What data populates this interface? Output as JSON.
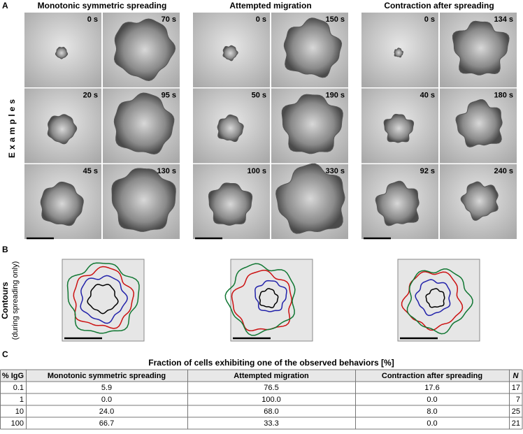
{
  "panels": {
    "A": {
      "label": "A",
      "side_label": "Examples",
      "columns": [
        {
          "title": "Monotonic symmetric spreading",
          "times": [
            [
              "0 s",
              "70 s"
            ],
            [
              "20 s",
              "95 s"
            ],
            [
              "45 s",
              "130 s"
            ]
          ]
        },
        {
          "title": "Attempted migration",
          "times": [
            [
              "0 s",
              "150 s"
            ],
            [
              "50 s",
              "190 s"
            ],
            [
              "100 s",
              "330 s"
            ]
          ]
        },
        {
          "title": "Contraction after spreading",
          "times": [
            [
              "0 s",
              "134 s"
            ],
            [
              "40 s",
              "180 s"
            ],
            [
              "92 s",
              "240 s"
            ]
          ]
        }
      ]
    },
    "B": {
      "label": "B",
      "side_label": "Contours",
      "side_sublabel": "(during spreading only)"
    },
    "C": {
      "label": "C",
      "title": "Fraction of cells exhibiting one of the observed behaviors  [%]",
      "table": {
        "header": [
          "% IgG",
          "Monotonic symmetric spreading",
          "Attempted migration",
          "Contraction after spreading",
          "N"
        ],
        "rows": [
          [
            "0.1",
            "5.9",
            "76.5",
            "17.6",
            "17"
          ],
          [
            "1",
            "0.0",
            "100.0",
            "0.0",
            "7"
          ],
          [
            "10",
            "24.0",
            "68.0",
            "8.0",
            "25"
          ],
          [
            "100",
            "66.7",
            "33.3",
            "0.0",
            "21"
          ]
        ]
      }
    }
  }
}
